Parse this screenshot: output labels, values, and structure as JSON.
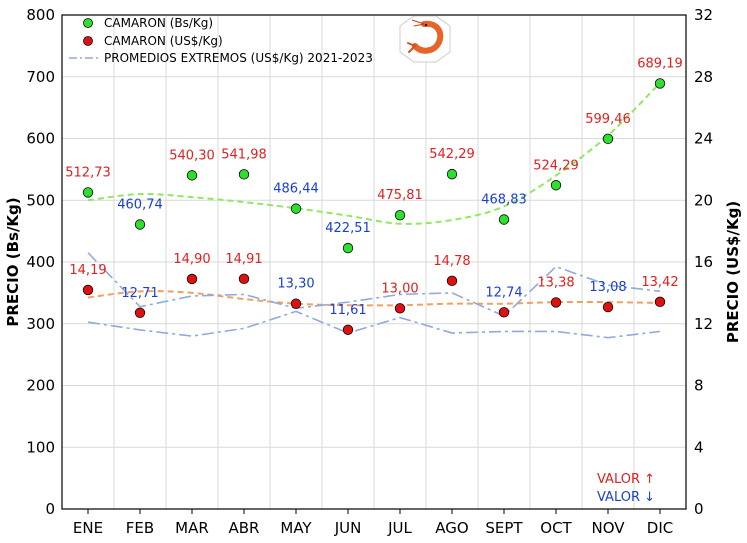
{
  "chart_data": {
    "type": "scatter",
    "categories": [
      "ENE",
      "FEB",
      "MAR",
      "ABR",
      "MAY",
      "JUN",
      "JUL",
      "AGO",
      "SEPT",
      "OCT",
      "NOV",
      "DIC"
    ],
    "y_left": {
      "label": "PRECIO (Bs/Kg)",
      "lim": [
        0,
        800
      ],
      "ticks": [
        0,
        100,
        200,
        300,
        400,
        500,
        600,
        700,
        800
      ]
    },
    "y_right": {
      "label": "PRECIO (US$/Kg)",
      "lim": [
        0,
        32
      ],
      "ticks": [
        0,
        4,
        8,
        12,
        16,
        20,
        24,
        28,
        32
      ]
    },
    "grid": true,
    "legend_position": "top-left",
    "series": [
      {
        "name": "CAMARON (Bs/Kg)",
        "axis": "left",
        "color": "#22cc22",
        "values": [
          512.73,
          460.74,
          540.3,
          541.98,
          486.44,
          422.51,
          475.81,
          542.29,
          468.83,
          524.29,
          599.46,
          689.19
        ],
        "labels": [
          "512,73",
          "460,74",
          "540,30",
          "541,98",
          "486,44",
          "422,51",
          "475,81",
          "542,29",
          "468,83",
          "524,29",
          "599,46",
          "689,19"
        ],
        "label_colors": [
          "#e02020",
          "#1a3fcf",
          "#e02020",
          "#e02020",
          "#1a3fcf",
          "#1a3fcf",
          "#e02020",
          "#e02020",
          "#1a3fcf",
          "#e02020",
          "#e02020",
          "#e02020"
        ]
      },
      {
        "name": "CAMARON (US$/Kg)",
        "axis": "right",
        "color": "#dd1111",
        "values": [
          14.19,
          12.71,
          14.9,
          14.91,
          13.3,
          11.61,
          13.0,
          14.78,
          12.74,
          13.38,
          13.08,
          13.42
        ],
        "labels": [
          "14,19",
          "12,71",
          "14,90",
          "14,91",
          "13,30",
          "11,61",
          "13,00",
          "14,78",
          "12,74",
          "13,38",
          "13,08",
          "13,42"
        ],
        "label_colors": [
          "#e02020",
          "#1a3fcf",
          "#e02020",
          "#e02020",
          "#1a3fcf",
          "#1a3fcf",
          "#e02020",
          "#e02020",
          "#1a3fcf",
          "#e02020",
          "#1a3fcf",
          "#e02020"
        ]
      },
      {
        "name": "PROMEDIOS EXTREMOS (US$/Kg) 2021-2023",
        "axis": "right",
        "color": "#8faadc",
        "max_values": [
          16.6,
          13.1,
          13.8,
          13.9,
          13.0,
          13.4,
          13.9,
          14.0,
          12.5,
          15.7,
          14.5,
          14.1
        ],
        "min_values": [
          12.1,
          11.6,
          11.2,
          11.7,
          12.8,
          11.4,
          12.4,
          11.4,
          11.5,
          11.5,
          11.1,
          11.5
        ]
      }
    ],
    "trend_bs": [
      500,
      510,
      505,
      497,
      487,
      475,
      462,
      468,
      490,
      540,
      605,
      690
    ],
    "trend_us": [
      13.7,
      14.1,
      14.0,
      13.6,
      13.3,
      13.2,
      13.2,
      13.3,
      13.3,
      13.4,
      13.4,
      13.35
    ],
    "trend_bs_color": "#90e860",
    "trend_us_color": "#f0a060",
    "annotations": [
      {
        "text": "VALOR ↑",
        "color": "#e02020"
      },
      {
        "text": "VALOR ↓",
        "color": "#1a3fcf"
      }
    ]
  }
}
